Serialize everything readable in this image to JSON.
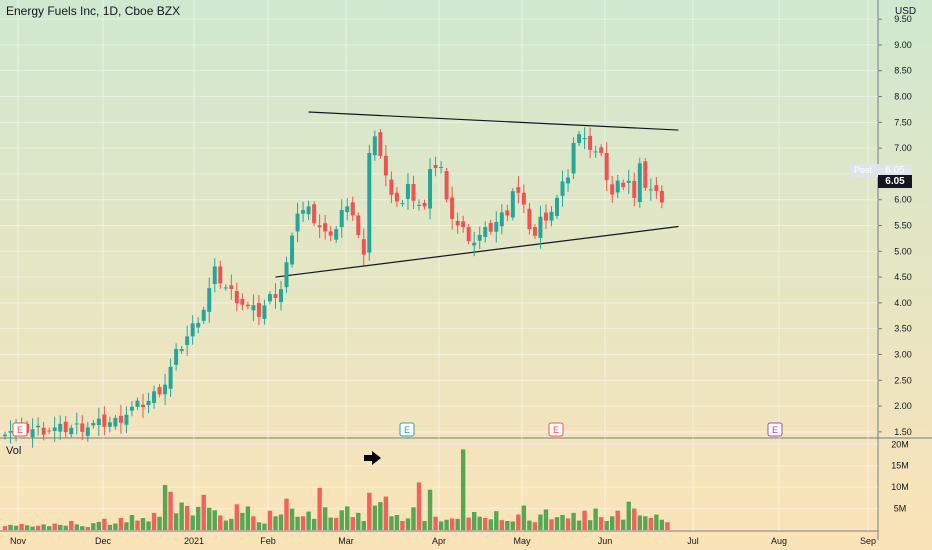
{
  "header": {
    "title": "Energy Fuels Inc, 1D, Cboe BZX",
    "currency": "USD",
    "volume_label": "Vol"
  },
  "price_tags": {
    "post_label": "Post",
    "post_value": "6.05",
    "last_value": "6.05"
  },
  "colors": {
    "up": "#26a69a",
    "up_volume": "#43a047",
    "down": "#ef5350",
    "trendline": "#131722",
    "bg_top": "#cfe8cf",
    "bg_bottom": "#fbe3b8"
  },
  "event_markers": [
    {
      "label": "E",
      "color": "#ef5350",
      "position": "Nov"
    },
    {
      "label": "E",
      "color": "#26a69a",
      "position": "Mar"
    },
    {
      "label": "E",
      "color": "#ef5350",
      "position": "May"
    },
    {
      "label": "E",
      "color": "#ab47bc",
      "position": "Aug"
    }
  ],
  "annotation_arrow": "arrow-right-icon",
  "chart_data": {
    "type": "candlestick",
    "x_ticks": [
      "Nov",
      "Dec",
      "2021",
      "Feb",
      "Mar",
      "Apr",
      "May",
      "Jun",
      "Jul",
      "Aug",
      "Sep"
    ],
    "price_ticks": [
      "9.50",
      "9.00",
      "8.50",
      "8.00",
      "7.50",
      "7.00",
      "6.50",
      "6.00",
      "5.50",
      "5.00",
      "4.50",
      "4.00",
      "3.50",
      "3.00",
      "2.50",
      "2.00",
      "1.50"
    ],
    "price_range": [
      1.4,
      9.6
    ],
    "volume_ticks": [
      "20M",
      "15M",
      "10M",
      "5M"
    ],
    "volume_range": [
      0,
      21
    ],
    "price_path": [
      [
        0,
        1.55
      ],
      [
        10,
        1.55
      ],
      [
        15,
        1.62
      ],
      [
        20,
        1.7
      ],
      [
        23,
        1.95
      ],
      [
        26,
        2.1
      ],
      [
        29,
        2.45
      ],
      [
        31,
        3.0
      ],
      [
        33,
        3.35
      ],
      [
        36,
        3.9
      ],
      [
        38,
        4.6
      ],
      [
        40,
        4.3
      ],
      [
        42,
        4.1
      ],
      [
        44,
        3.9
      ],
      [
        46,
        3.8
      ],
      [
        48,
        4.1
      ],
      [
        50,
        4.3
      ],
      [
        52,
        5.2
      ],
      [
        53,
        5.8
      ],
      [
        55,
        5.8
      ],
      [
        57,
        5.5
      ],
      [
        59,
        5.2
      ],
      [
        61,
        5.8
      ],
      [
        63,
        5.8
      ],
      [
        65,
        4.9
      ],
      [
        66,
        6.8
      ],
      [
        67,
        7.3
      ],
      [
        69,
        6.4
      ],
      [
        71,
        6.0
      ],
      [
        72,
        5.9
      ],
      [
        73,
        6.2
      ],
      [
        75,
        5.9
      ],
      [
        76,
        5.8
      ],
      [
        77,
        6.7
      ],
      [
        79,
        6.6
      ],
      [
        80,
        5.9
      ],
      [
        82,
        5.5
      ],
      [
        85,
        5.2
      ],
      [
        88,
        5.45
      ],
      [
        91,
        5.8
      ],
      [
        92,
        6.2
      ],
      [
        93,
        6.1
      ],
      [
        95,
        5.5
      ],
      [
        96,
        5.3
      ],
      [
        97,
        5.6
      ],
      [
        99,
        5.8
      ],
      [
        100,
        6.0
      ],
      [
        102,
        6.5
      ],
      [
        103,
        7.1
      ],
      [
        105,
        7.3
      ],
      [
        106,
        7.0
      ],
      [
        108,
        6.8
      ],
      [
        110,
        6.1
      ],
      [
        111,
        6.3
      ],
      [
        113,
        6.4
      ],
      [
        114,
        6.0
      ],
      [
        115,
        6.6
      ],
      [
        116,
        6.3
      ],
      [
        118,
        6.1
      ],
      [
        119,
        6.05
      ]
    ],
    "volume_values": [
      0.9,
      1.2,
      1.0,
      1.4,
      1.1,
      0.8,
      1.0,
      1.3,
      0.9,
      1.5,
      1.2,
      1.0,
      2.1,
      1.3,
      0.9,
      0.7,
      1.6,
      1.9,
      2.6,
      1.2,
      1.5,
      2.8,
      1.8,
      3.5,
      2.2,
      2.8,
      2.0,
      4.0,
      3.1,
      10.5,
      8.9,
      3.9,
      6.4,
      5.6,
      3.4,
      5.4,
      8.2,
      5.2,
      4.6,
      3.4,
      2.2,
      2.6,
      6.0,
      4.0,
      5.5,
      3.2,
      1.8,
      1.5,
      4.5,
      3.2,
      3.6,
      7.3,
      5.0,
      3.1,
      3.2,
      4.3,
      2.6,
      9.8,
      5.3,
      2.9,
      2.8,
      4.6,
      5.5,
      3.0,
      4.0,
      2.1,
      8.7,
      5.7,
      6.5,
      7.8,
      3.2,
      3.5,
      2.1,
      2.7,
      5.3,
      11.1,
      2.1,
      9.4,
      3.1,
      2.0,
      2.4,
      2.7,
      2.6,
      18.8,
      2.9,
      4.2,
      3.1,
      2.8,
      2.5,
      4.4,
      2.3,
      2.1,
      2.0,
      3.6,
      5.7,
      2.2,
      1.8,
      3.6,
      4.8,
      2.5,
      3.0,
      3.5,
      2.7,
      4.0,
      2.2,
      4.5,
      2.3,
      5.0,
      3.0,
      2.1,
      3.2,
      4.5,
      2.4,
      6.6,
      5.0,
      3.4,
      3.2,
      2.8,
      3.6,
      2.4,
      1.8
    ],
    "trendlines": [
      {
        "from": [
          55,
          7.7
        ],
        "to": [
          122,
          7.35
        ]
      },
      {
        "from": [
          49,
          4.5
        ],
        "to": [
          122,
          5.48
        ]
      }
    ]
  }
}
